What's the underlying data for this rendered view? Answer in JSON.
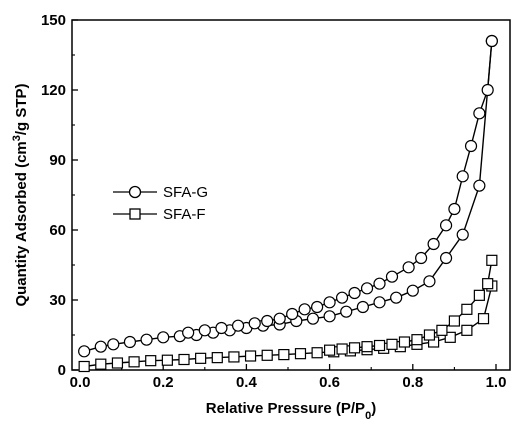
{
  "chart_data": {
    "type": "line",
    "xlabel": "Relative Pressure (P/P",
    "xlabel_sub": "0",
    "xlabel_end": ")",
    "ylabel": "Quantity Adsorbed (cm",
    "ylabel_sup": "3",
    "ylabel_end": "/g STP)",
    "xlim": [
      0,
      1.0
    ],
    "ylim": [
      0,
      150
    ],
    "xticks": [
      0.0,
      0.2,
      0.4,
      0.6,
      0.8,
      1.0
    ],
    "xtick_labels": [
      "0.0",
      "0.2",
      "0.4",
      "0.6",
      "0.8",
      "1.0"
    ],
    "yticks": [
      0,
      30,
      60,
      90,
      120,
      150
    ],
    "ytick_labels": [
      "0",
      "30",
      "60",
      "90",
      "120",
      "150"
    ],
    "grid": false,
    "legend_position": "center-left",
    "series": [
      {
        "name": "SFA-G",
        "marker": "circle",
        "adsorption": {
          "x": [
            0.01,
            0.05,
            0.08,
            0.12,
            0.16,
            0.2,
            0.24,
            0.28,
            0.32,
            0.36,
            0.4,
            0.44,
            0.48,
            0.52,
            0.56,
            0.6,
            0.64,
            0.68,
            0.72,
            0.76,
            0.8,
            0.84,
            0.88,
            0.92,
            0.96,
            0.99
          ],
          "y": [
            8,
            10,
            11,
            12,
            13,
            14,
            14.5,
            15,
            16,
            17,
            18,
            19,
            19.5,
            21,
            22,
            23,
            25,
            27,
            29,
            31,
            34,
            38,
            48,
            58,
            79,
            141
          ]
        },
        "desorption": {
          "x": [
            0.99,
            0.98,
            0.96,
            0.94,
            0.92,
            0.9,
            0.88,
            0.85,
            0.82,
            0.79,
            0.75,
            0.72,
            0.69,
            0.66,
            0.63,
            0.6,
            0.57,
            0.54,
            0.51,
            0.48,
            0.45,
            0.42,
            0.38,
            0.34,
            0.3,
            0.26
          ],
          "y": [
            141,
            120,
            110,
            96,
            83,
            69,
            62,
            54,
            48,
            44,
            40,
            37,
            35,
            33,
            31,
            29,
            27,
            26,
            24,
            22,
            21,
            20,
            19,
            18,
            17,
            16
          ]
        }
      },
      {
        "name": "SFA-F",
        "marker": "square",
        "adsorption": {
          "x": [
            0.01,
            0.05,
            0.09,
            0.13,
            0.17,
            0.21,
            0.25,
            0.29,
            0.33,
            0.37,
            0.41,
            0.45,
            0.49,
            0.53,
            0.57,
            0.61,
            0.65,
            0.69,
            0.73,
            0.77,
            0.81,
            0.85,
            0.89,
            0.93,
            0.97,
            0.99
          ],
          "y": [
            1.5,
            2.5,
            3,
            3.5,
            4,
            4.2,
            4.5,
            5,
            5.3,
            5.6,
            6,
            6.3,
            6.6,
            7,
            7.4,
            7.8,
            8.2,
            8.7,
            9.3,
            10,
            11,
            12,
            14,
            17,
            22,
            36
          ]
        },
        "desorption": {
          "x": [
            0.99,
            0.98,
            0.96,
            0.93,
            0.9,
            0.87,
            0.84,
            0.81,
            0.78,
            0.75,
            0.72,
            0.69,
            0.66,
            0.63,
            0.6
          ],
          "y": [
            47,
            37,
            32,
            26,
            21,
            17,
            15,
            13,
            12,
            11,
            10.5,
            10,
            9.5,
            9,
            8.5
          ]
        }
      }
    ]
  }
}
